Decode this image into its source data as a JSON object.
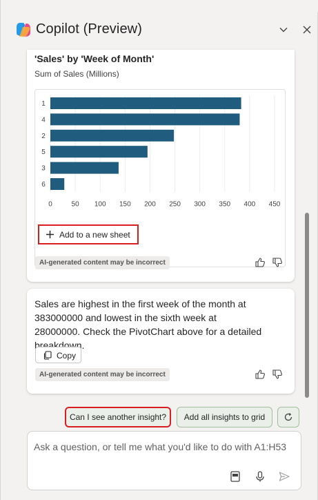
{
  "header": {
    "title": "Copilot (Preview)",
    "collapse_icon": "chevron-down-icon",
    "close_icon": "close-icon"
  },
  "chart_card": {
    "title": "'Sales' by 'Week of Month'",
    "subtitle": "Sum of Sales (Millions)",
    "add_sheet_label": "Add to a new sheet",
    "ai_note": "AI-generated content may be incorrect"
  },
  "chart_data": {
    "type": "bar",
    "orientation": "horizontal",
    "categories": [
      "1",
      "4",
      "2",
      "5",
      "3",
      "6"
    ],
    "values": [
      383,
      380,
      248,
      195,
      137,
      28
    ],
    "title": "'Sales' by 'Week of Month'",
    "subtitle": "Sum of Sales (Millions)",
    "xlabel": "",
    "ylabel": "",
    "xlim": [
      0,
      450
    ],
    "xticks": [
      "0",
      "50",
      "100",
      "150",
      "200",
      "250",
      "300",
      "350",
      "400",
      "450"
    ],
    "grid": true,
    "bar_color": "#1f5c7d"
  },
  "insight_card": {
    "message": "Sales are highest in the first week of the month at 383000000 and lowest in the sixth week at 28000000. Check the PivotChart above for a detailed breakdown.",
    "copy_label": "Copy",
    "ai_note": "AI-generated content may be incorrect"
  },
  "suggestions": {
    "another_insight": "Can I see another insight?",
    "add_all": "Add all insights to grid"
  },
  "input": {
    "placeholder": "Ask a question, or tell me what you'd like to do with A1:H53"
  },
  "colors": {
    "accent_red": "#d81e1e",
    "bar": "#1f5c7d",
    "suggestion_bg": "#eaf0e9"
  }
}
